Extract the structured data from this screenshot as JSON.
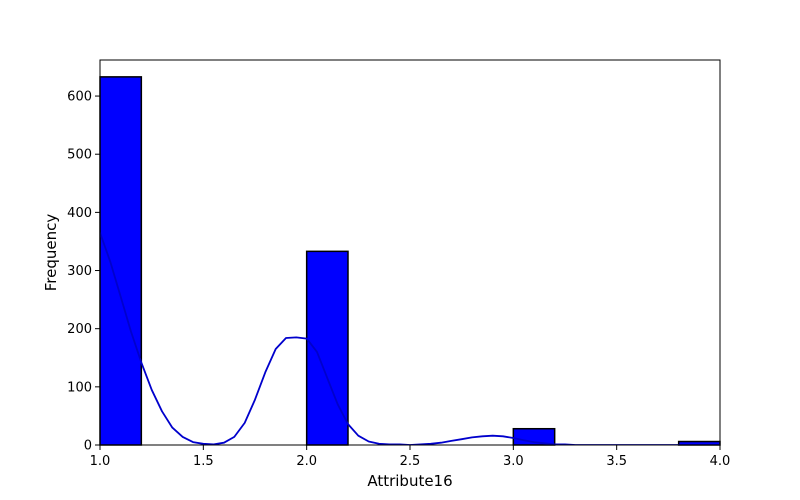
{
  "chart_data": {
    "type": "bar",
    "xlabel": "Attribute16",
    "ylabel": "Frequency",
    "xlim": [
      1.0,
      4.0
    ],
    "ylim": [
      0,
      662
    ],
    "x_ticks": [
      1.0,
      1.5,
      2.0,
      2.5,
      3.0,
      3.5,
      4.0
    ],
    "x_tick_labels": [
      "1.0",
      "1.5",
      "2.0",
      "2.5",
      "3.0",
      "3.5",
      "4.0"
    ],
    "y_ticks": [
      0,
      100,
      200,
      300,
      400,
      500,
      600
    ],
    "y_tick_labels": [
      "0",
      "100",
      "200",
      "300",
      "400",
      "500",
      "600"
    ],
    "bin_edges": [
      1.0,
      1.2,
      1.4,
      1.6,
      1.8,
      2.0,
      2.2,
      2.4,
      2.6,
      2.8,
      3.0,
      3.2,
      3.4,
      3.6,
      3.8,
      4.0
    ],
    "values": [
      633,
      0,
      0,
      0,
      0,
      333,
      0,
      0,
      0,
      0,
      28,
      0,
      0,
      0,
      6
    ],
    "kde": {
      "x": [
        1.0,
        1.05,
        1.1,
        1.15,
        1.2,
        1.25,
        1.3,
        1.35,
        1.4,
        1.45,
        1.5,
        1.55,
        1.6,
        1.65,
        1.7,
        1.75,
        1.8,
        1.85,
        1.9,
        1.95,
        2.0,
        2.05,
        2.1,
        2.15,
        2.2,
        2.25,
        2.3,
        2.35,
        2.4,
        2.45,
        2.5,
        2.55,
        2.6,
        2.65,
        2.7,
        2.75,
        2.8,
        2.85,
        2.9,
        2.95,
        3.0,
        3.05,
        3.1,
        3.15,
        3.2,
        3.25,
        3.3,
        3.35,
        3.4,
        3.45,
        3.5,
        3.6,
        3.7,
        3.8,
        3.9,
        4.0
      ],
      "y": [
        365,
        315,
        255,
        195,
        142,
        95,
        58,
        30,
        14,
        5,
        2,
        1,
        4,
        14,
        38,
        78,
        125,
        165,
        184,
        185,
        183,
        160,
        115,
        70,
        36,
        16,
        6,
        2,
        1,
        1,
        0,
        1,
        2,
        4,
        7,
        10,
        13,
        15,
        16,
        15,
        12,
        8,
        5,
        3,
        1,
        1,
        0,
        0,
        0,
        0,
        0,
        0,
        0,
        0,
        0,
        0
      ]
    },
    "colors": {
      "bar_fill": "#0000ff",
      "bar_edge": "#000000",
      "kde_line": "#0000cc"
    },
    "grid": false,
    "legend": "none"
  }
}
